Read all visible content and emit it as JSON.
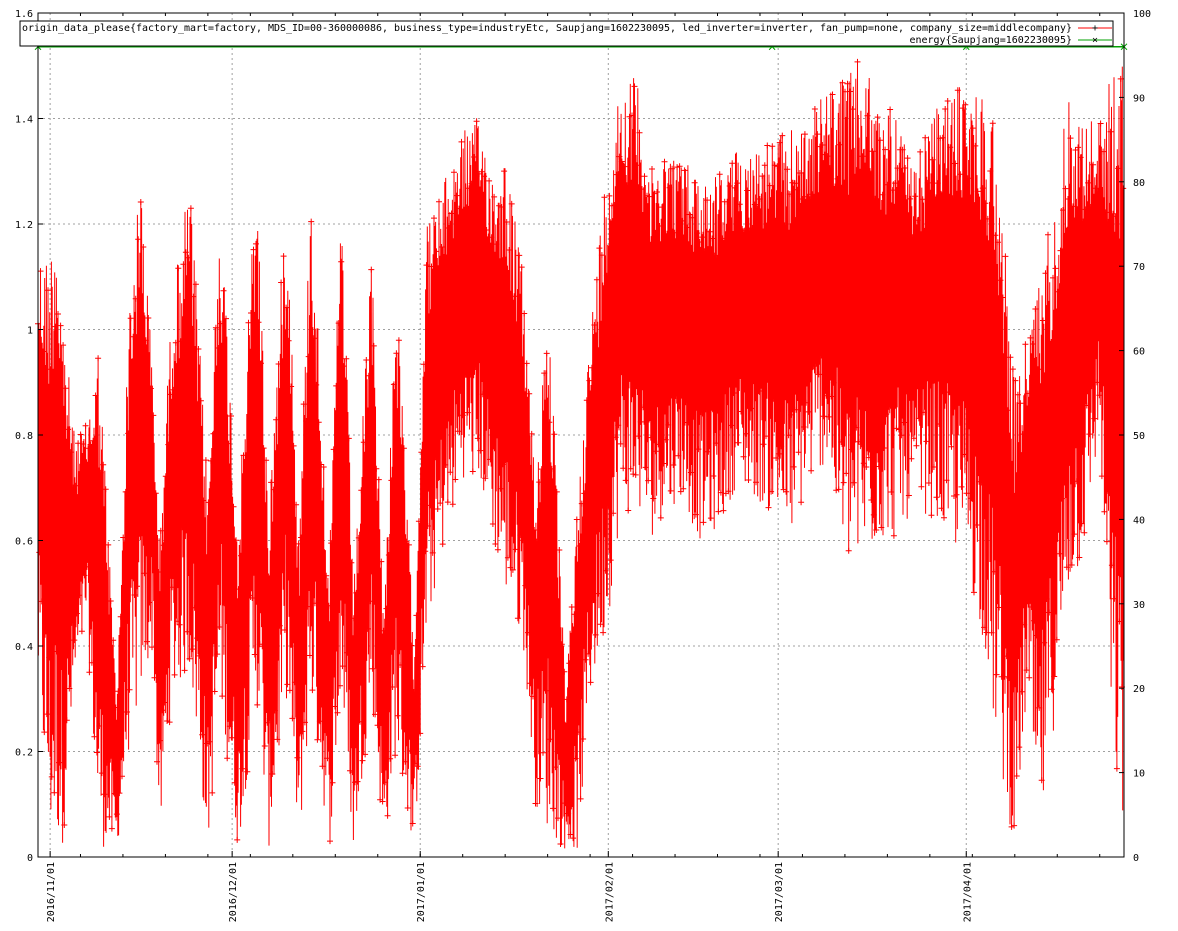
{
  "chart_data": {
    "type": "line",
    "legend_position": "top",
    "grid": true,
    "x_axis": {
      "type": "date",
      "range": [
        "2016-10-30",
        "2017-04-27"
      ],
      "ticks": [
        "2016/11/01",
        "2016/12/01",
        "2017/01/01",
        "2017/02/01",
        "2017/03/01",
        "2017/04/01"
      ]
    },
    "y_axis": {
      "range": [
        0,
        1.6
      ],
      "ticks": [
        "0",
        "0.2",
        "0.4",
        "0.6",
        "0.8",
        "1",
        "1.2",
        "1.4",
        "1.6"
      ]
    },
    "y2_axis": {
      "range": [
        0,
        100
      ],
      "ticks": [
        "0",
        "10",
        "20",
        "30",
        "40",
        "50",
        "60",
        "70",
        "80",
        "90",
        "100"
      ]
    },
    "series": [
      {
        "name": "origin_data_please{factory_mart=factory, MDS_ID=00-360000086, business_type=industryEtc, Saupjang=1602230095, led_inverter=inverter, fan_pump=none, company_size=middlecompany}",
        "axis": "y",
        "marker": "+",
        "color": "#ff0000",
        "envelope": {
          "x": [
            "2016-10-30",
            "2016-11-01",
            "2016-11-02",
            "2016-11-03",
            "2016-11-05",
            "2016-11-07",
            "2016-11-09",
            "2016-11-12",
            "2016-11-14",
            "2016-11-16",
            "2016-11-18",
            "2016-11-19",
            "2016-11-21",
            "2016-11-24",
            "2016-11-27",
            "2016-11-29",
            "2016-12-02",
            "2016-12-05",
            "2016-12-07",
            "2016-12-10",
            "2016-12-12",
            "2016-12-14",
            "2016-12-17",
            "2016-12-19",
            "2016-12-21",
            "2016-12-24",
            "2016-12-26",
            "2016-12-28",
            "2016-12-31",
            "2017-01-02",
            "2017-01-04",
            "2017-01-08",
            "2017-01-11",
            "2017-01-13",
            "2017-01-15",
            "2017-01-18",
            "2017-01-20",
            "2017-01-22",
            "2017-01-25",
            "2017-01-27",
            "2017-01-29",
            "2017-02-01",
            "2017-02-03",
            "2017-02-06",
            "2017-02-08",
            "2017-02-10",
            "2017-02-13",
            "2017-02-16",
            "2017-02-19",
            "2017-02-22",
            "2017-02-25",
            "2017-02-28",
            "2017-03-03",
            "2017-03-06",
            "2017-03-09",
            "2017-03-12",
            "2017-03-15",
            "2017-03-18",
            "2017-03-20",
            "2017-03-23",
            "2017-03-26",
            "2017-03-29",
            "2017-04-01",
            "2017-04-04",
            "2017-04-06",
            "2017-04-09",
            "2017-04-11",
            "2017-04-13",
            "2017-04-16",
            "2017-04-18",
            "2017-04-20",
            "2017-04-23",
            "2017-04-25",
            "2017-04-27"
          ],
          "high": [
            1.15,
            1.15,
            1.27,
            1.05,
            0.8,
            0.82,
            0.98,
            0.3,
            1.05,
            1.3,
            0.9,
            0.6,
            1.05,
            1.29,
            0.7,
            1.26,
            0.62,
            1.34,
            0.65,
            1.29,
            0.6,
            1.3,
            0.55,
            1.28,
            0.5,
            1.15,
            0.45,
            1.1,
            0.4,
            1.2,
            1.25,
            1.38,
            1.4,
            1.3,
            1.34,
            1.1,
            0.7,
            1.1,
            0.3,
            0.7,
            1.0,
            1.35,
            1.48,
            1.48,
            1.3,
            1.35,
            1.33,
            1.3,
            1.3,
            1.34,
            1.35,
            1.36,
            1.38,
            1.4,
            1.46,
            1.48,
            1.52,
            1.4,
            1.45,
            1.3,
            1.4,
            1.45,
            1.47,
            1.45,
            1.4,
            0.9,
            1.0,
            1.1,
            1.3,
            1.46,
            1.4,
            1.4,
            1.5,
            1.53
          ],
          "low": [
            0.3,
            0.02,
            0.03,
            0.01,
            0.3,
            0.45,
            0.02,
            0.01,
            0.2,
            0.3,
            0.4,
            0.01,
            0.3,
            0.35,
            0.01,
            0.3,
            0.01,
            0.3,
            0.01,
            0.3,
            0.01,
            0.3,
            0.01,
            0.3,
            0.01,
            0.3,
            0.01,
            0.2,
            0.01,
            0.4,
            0.55,
            0.72,
            0.7,
            0.6,
            0.5,
            0.4,
            0.1,
            0.05,
            0.01,
            0.01,
            0.3,
            0.45,
            0.65,
            0.65,
            0.6,
            0.65,
            0.68,
            0.6,
            0.62,
            0.7,
            0.68,
            0.65,
            0.6,
            0.7,
            0.75,
            0.55,
            0.55,
            0.6,
            0.6,
            0.65,
            0.65,
            0.6,
            0.55,
            0.4,
            0.2,
            0.01,
            0.3,
            0.01,
            0.3,
            0.5,
            0.55,
            0.8,
            0.2,
            0.0
          ]
        }
      },
      {
        "name": "energy{Saupjang=1602230095}",
        "axis": "y2",
        "marker": "x",
        "color": "#00a000",
        "x": [
          "2016-10-30",
          "2017-02-28",
          "2017-04-01",
          "2017-04-27"
        ],
        "values": [
          96,
          96,
          96,
          96
        ]
      }
    ]
  }
}
